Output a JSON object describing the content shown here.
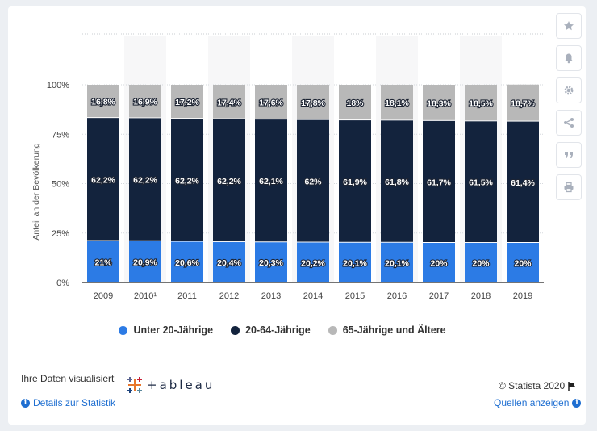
{
  "chart_data": {
    "type": "bar",
    "stacked": true,
    "categories": [
      "2009",
      "2010¹",
      "2011",
      "2012",
      "2013",
      "2014",
      "2015",
      "2016",
      "2017",
      "2018",
      "2019"
    ],
    "series": [
      {
        "name": "Unter 20-Jährige",
        "color": "#2c7be5",
        "values": [
          21,
          20.9,
          20.6,
          20.4,
          20.3,
          20.2,
          20.1,
          20.1,
          20,
          20,
          20
        ],
        "labels": [
          "21%",
          "20,9%",
          "20,6%",
          "20,4%",
          "20,3%",
          "20,2%",
          "20,1%",
          "20,1%",
          "20%",
          "20%",
          "20%"
        ]
      },
      {
        "name": "20-64-Jährige",
        "color": "#13233d",
        "values": [
          62.2,
          62.2,
          62.2,
          62.2,
          62.1,
          62,
          61.9,
          61.8,
          61.7,
          61.5,
          61.4
        ],
        "labels": [
          "62,2%",
          "62,2%",
          "62,2%",
          "62,2%",
          "62,1%",
          "62%",
          "61,9%",
          "61,8%",
          "61,7%",
          "61,5%",
          "61,4%"
        ]
      },
      {
        "name": "65-Jährige und Ältere",
        "color": "#b8b8b8",
        "values": [
          16.8,
          16.9,
          17.2,
          17.4,
          17.6,
          17.8,
          18,
          18.1,
          18.3,
          18.5,
          18.7
        ],
        "labels": [
          "16,8%",
          "16,9%",
          "17,2%",
          "17,4%",
          "17,6%",
          "17,8%",
          "18%",
          "18,1%",
          "18,3%",
          "18,5%",
          "18,7%"
        ]
      }
    ],
    "ylabel": "Anteil an der Bevölkerung",
    "yticks": [
      "0%",
      "25%",
      "50%",
      "75%",
      "100%"
    ],
    "ylim": [
      0,
      100
    ],
    "grid": true,
    "legend": "bottom"
  },
  "legend_items": [
    {
      "label": "Unter 20-Jährige",
      "color": "#2c7be5"
    },
    {
      "label": "20-64-Jährige",
      "color": "#13233d"
    },
    {
      "label": "65-Jährige und Ältere",
      "color": "#b8b8b8"
    }
  ],
  "footer": {
    "visualized": "Ihre Daten visualisiert",
    "tableau": "+ableau",
    "copyright": "© Statista 2020",
    "details": "Details zur Statistik",
    "sources": "Quellen anzeigen"
  },
  "sidebar_icons": [
    "star-icon",
    "bell-icon",
    "gear-icon",
    "share-icon",
    "quote-icon",
    "print-icon"
  ]
}
